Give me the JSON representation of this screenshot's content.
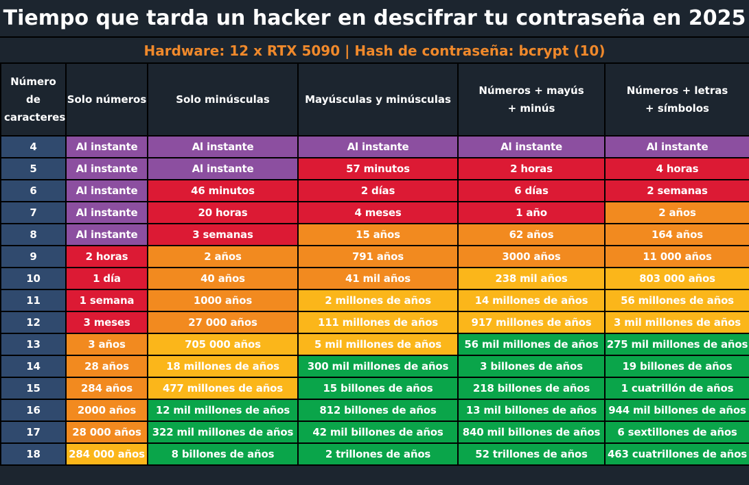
{
  "title": "Tiempo que tarda un hacker en descifrar tu contraseña en 2025",
  "subtitle": "Hardware: 12 x RTX 5090 | Hash de contraseña: bcrypt (10)",
  "colors": {
    "instant": "#8c4fa0",
    "red": "#dc1a34",
    "orange": "#f28a1f",
    "yellow": "#fbb61a",
    "green": "#0aa54a",
    "length_col": "#304a6e",
    "header_bg": "#1c252f",
    "subtitle_text": "#f0892b"
  },
  "chart_data": {
    "type": "table",
    "title": "Tiempo que tarda un hacker en descifrar tu contraseña en 2025",
    "subtitle": "Hardware: 12 x RTX 5090 | Hash de contraseña: bcrypt (10)",
    "columns": [
      "Número de caracteres",
      "Solo números",
      "Solo minúsculas",
      "Mayúsculas y minúsculas",
      "Números + mayús + minús",
      "Números + letras + símbolos"
    ],
    "rows": [
      {
        "length": "4",
        "cells": [
          {
            "text": "Al instante",
            "level": "instant"
          },
          {
            "text": "Al instante",
            "level": "instant"
          },
          {
            "text": "Al instante",
            "level": "instant"
          },
          {
            "text": "Al instante",
            "level": "instant"
          },
          {
            "text": "Al instante",
            "level": "instant"
          }
        ]
      },
      {
        "length": "5",
        "cells": [
          {
            "text": "Al instante",
            "level": "instant"
          },
          {
            "text": "Al instante",
            "level": "instant"
          },
          {
            "text": "57 minutos",
            "level": "red"
          },
          {
            "text": "2 horas",
            "level": "red"
          },
          {
            "text": "4 horas",
            "level": "red"
          }
        ]
      },
      {
        "length": "6",
        "cells": [
          {
            "text": "Al instante",
            "level": "instant"
          },
          {
            "text": "46 minutos",
            "level": "red"
          },
          {
            "text": "2 días",
            "level": "red"
          },
          {
            "text": "6 días",
            "level": "red"
          },
          {
            "text": "2 semanas",
            "level": "red"
          }
        ]
      },
      {
        "length": "7",
        "cells": [
          {
            "text": "Al instante",
            "level": "instant"
          },
          {
            "text": "20 horas",
            "level": "red"
          },
          {
            "text": "4 meses",
            "level": "red"
          },
          {
            "text": "1 año",
            "level": "red"
          },
          {
            "text": "2 años",
            "level": "orange"
          }
        ]
      },
      {
        "length": "8",
        "cells": [
          {
            "text": "Al instante",
            "level": "instant"
          },
          {
            "text": "3 semanas",
            "level": "red"
          },
          {
            "text": "15 años",
            "level": "orange"
          },
          {
            "text": "62 años",
            "level": "orange"
          },
          {
            "text": "164 años",
            "level": "orange"
          }
        ]
      },
      {
        "length": "9",
        "cells": [
          {
            "text": "2 horas",
            "level": "red"
          },
          {
            "text": "2 años",
            "level": "orange"
          },
          {
            "text": "791 años",
            "level": "orange"
          },
          {
            "text": "3000 años",
            "level": "orange"
          },
          {
            "text": "11 000 años",
            "level": "orange"
          }
        ]
      },
      {
        "length": "10",
        "cells": [
          {
            "text": "1 día",
            "level": "red"
          },
          {
            "text": "40 años",
            "level": "orange"
          },
          {
            "text": "41 mil años",
            "level": "orange"
          },
          {
            "text": "238 mil años",
            "level": "yellow"
          },
          {
            "text": "803 000 años",
            "level": "yellow"
          }
        ]
      },
      {
        "length": "11",
        "cells": [
          {
            "text": "1 semana",
            "level": "red"
          },
          {
            "text": "1000 años",
            "level": "orange"
          },
          {
            "text": "2 millones de años",
            "level": "yellow"
          },
          {
            "text": "14 millones de años",
            "level": "yellow"
          },
          {
            "text": "56 millones de años",
            "level": "yellow"
          }
        ]
      },
      {
        "length": "12",
        "cells": [
          {
            "text": "3 meses",
            "level": "red"
          },
          {
            "text": "27 000 años",
            "level": "orange"
          },
          {
            "text": "111 millones de años",
            "level": "yellow"
          },
          {
            "text": "917 millones de años",
            "level": "yellow"
          },
          {
            "text": "3 mil millones de años",
            "level": "yellow"
          }
        ]
      },
      {
        "length": "13",
        "cells": [
          {
            "text": "3 años",
            "level": "orange"
          },
          {
            "text": "705 000 años",
            "level": "yellow"
          },
          {
            "text": "5 mil millones de años",
            "level": "yellow"
          },
          {
            "text": "56 mil millones de años",
            "level": "green"
          },
          {
            "text": "275 mil millones de años",
            "level": "green"
          }
        ]
      },
      {
        "length": "14",
        "cells": [
          {
            "text": "28 años",
            "level": "orange"
          },
          {
            "text": "18 millones de años",
            "level": "yellow"
          },
          {
            "text": "300 mil millones de años",
            "level": "green"
          },
          {
            "text": "3 billones de años",
            "level": "green"
          },
          {
            "text": "19 billones de años",
            "level": "green"
          }
        ]
      },
      {
        "length": "15",
        "cells": [
          {
            "text": "284 años",
            "level": "orange"
          },
          {
            "text": "477 millones de años",
            "level": "yellow"
          },
          {
            "text": "15 billones de años",
            "level": "green"
          },
          {
            "text": "218 billones de años",
            "level": "green"
          },
          {
            "text": "1 cuatrillón de años",
            "level": "green"
          }
        ]
      },
      {
        "length": "16",
        "cells": [
          {
            "text": "2000 años",
            "level": "orange"
          },
          {
            "text": "12 mil millones de años",
            "level": "green"
          },
          {
            "text": "812 billones de años",
            "level": "green"
          },
          {
            "text": "13 mil billones de años",
            "level": "green"
          },
          {
            "text": "944 mil billones de años",
            "level": "green"
          }
        ]
      },
      {
        "length": "17",
        "cells": [
          {
            "text": "28 000 años",
            "level": "orange"
          },
          {
            "text": "322 mil millones de años",
            "level": "green"
          },
          {
            "text": "42 mil billones de años",
            "level": "green"
          },
          {
            "text": "840 mil billones de años",
            "level": "green"
          },
          {
            "text": "6 sextillones de años",
            "level": "green"
          }
        ]
      },
      {
        "length": "18",
        "cells": [
          {
            "text": "284 000 años",
            "level": "yellow"
          },
          {
            "text": "8 billones de años",
            "level": "green"
          },
          {
            "text": "2 trillones de años",
            "level": "green"
          },
          {
            "text": "52 trillones de años",
            "level": "green"
          },
          {
            "text": "463 cuatrillones de años",
            "level": "green"
          }
        ]
      }
    ]
  }
}
